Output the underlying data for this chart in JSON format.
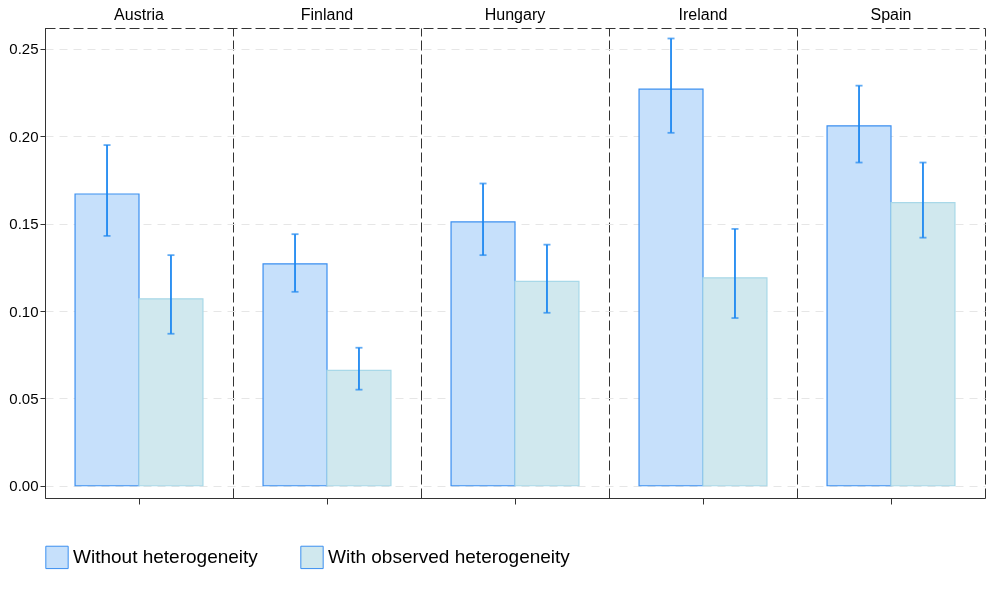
{
  "chart_data": {
    "type": "bar",
    "categories": [
      "Austria",
      "Finland",
      "Hungary",
      "Ireland",
      "Spain"
    ],
    "ylim": [
      -0.007,
      0.262
    ],
    "yticks": [
      {
        "value": 0,
        "label": "0.00"
      },
      {
        "value": 0.05,
        "label": "0.05"
      },
      {
        "value": 0.1,
        "label": "0.10"
      },
      {
        "value": 0.15,
        "label": "0.15"
      },
      {
        "value": 0.2,
        "label": "0.20"
      },
      {
        "value": 0.25,
        "label": "0.25"
      }
    ],
    "grid": "y",
    "legend": "bottom",
    "series": [
      {
        "name": "Without heterogeneity",
        "color": "#c6e0fb",
        "values": [
          0.167,
          0.127,
          0.151,
          0.227,
          0.206
        ],
        "errors": [
          [
            0.143,
            0.195
          ],
          [
            0.111,
            0.144
          ],
          [
            0.132,
            0.173
          ],
          [
            0.202,
            0.256
          ],
          [
            0.185,
            0.229
          ]
        ]
      },
      {
        "name": "With observed heterogeneity",
        "color": "#d0e8ee",
        "values": [
          0.107,
          0.066,
          0.117,
          0.119,
          0.162
        ],
        "errors": [
          [
            0.087,
            0.132
          ],
          [
            0.055,
            0.079
          ],
          [
            0.099,
            0.138
          ],
          [
            0.096,
            0.147
          ],
          [
            0.142,
            0.185
          ]
        ]
      }
    ]
  }
}
